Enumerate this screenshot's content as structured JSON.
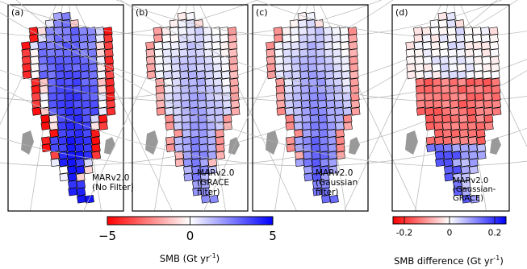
{
  "chart_data": [
    {
      "type": "heatmap",
      "panel_label": "(a)",
      "annotation": [
        "MARv2.0",
        "(No Filter)"
      ],
      "colormap": "red-white-blue",
      "colorbar": "SMB",
      "pattern": "nofilter"
    },
    {
      "type": "heatmap",
      "panel_label": "(b)",
      "annotation": [
        "MARv2.0",
        "(GRACE",
        "filter)"
      ],
      "colormap": "red-white-blue",
      "colorbar": "SMB",
      "pattern": "grace"
    },
    {
      "type": "heatmap",
      "panel_label": "(c)",
      "annotation": [
        "MARv2.0",
        "(Gaussian",
        "filter)"
      ],
      "colormap": "red-white-blue",
      "colorbar": "SMB",
      "pattern": "gauss"
    },
    {
      "type": "heatmap",
      "panel_label": "(d)",
      "annotation": [
        "MARv2.0",
        "(Gaussian-",
        "GRACE)"
      ],
      "colormap": "red-white-blue",
      "colorbar": "SMB difference",
      "pattern": "diff"
    }
  ],
  "colorbars": [
    {
      "label_main": "SMB (Gt yr",
      "label_sup": "-1",
      "label_end": ")",
      "range": [
        -5,
        5
      ],
      "ticks": [
        "−5",
        "0",
        "5"
      ],
      "tick_values": [
        -5,
        0,
        5
      ]
    },
    {
      "label_main": "SMB difference (Gt yr",
      "label_sup": "-1",
      "label_end": ")",
      "range": [
        -0.25,
        0.25
      ],
      "ticks": [
        "-0.2",
        "0",
        "0.2"
      ],
      "tick_values": [
        -0.2,
        0,
        0.2
      ]
    }
  ],
  "colors": {
    "neg": "#ff0000",
    "mid": "#ffffff",
    "pos": "#0000ff",
    "land": "#999999",
    "graticule": "#b4b4b4"
  }
}
